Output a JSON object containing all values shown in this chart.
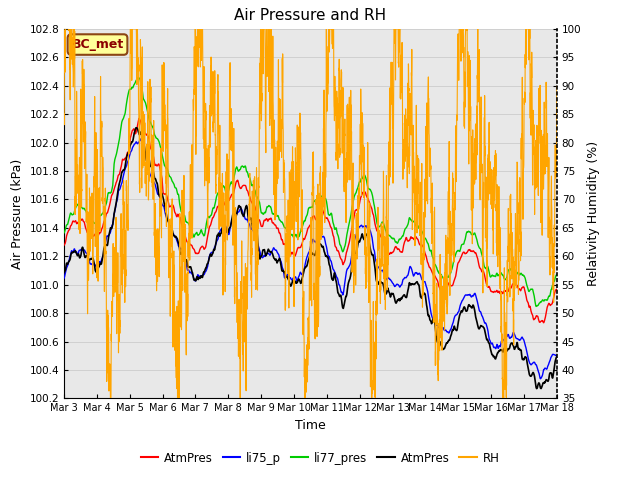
{
  "title": "Air Pressure and RH",
  "xlabel": "Time",
  "ylabel_left": "Air Pressure (kPa)",
  "ylabel_right": "Relativity Humidity (%)",
  "ylim_left": [
    100.2,
    102.8
  ],
  "ylim_right": [
    35,
    100
  ],
  "yticks_left": [
    100.2,
    100.4,
    100.6,
    100.8,
    101.0,
    101.2,
    101.4,
    101.6,
    101.8,
    102.0,
    102.2,
    102.4,
    102.6,
    102.8
  ],
  "yticks_right": [
    35,
    40,
    45,
    50,
    55,
    60,
    65,
    70,
    75,
    80,
    85,
    90,
    95,
    100
  ],
  "xtick_labels": [
    "Mar 3",
    "Mar 4",
    "Mar 5",
    "Mar 6",
    "Mar 7",
    "Mar 8",
    "Mar 9",
    "Mar 10",
    "Mar 11",
    "Mar 12",
    "Mar 13",
    "Mar 14",
    "Mar 15",
    "Mar 16",
    "Mar 17",
    "Mar 18"
  ],
  "annotation_text": "BC_met",
  "annotation_color": "#8B0000",
  "annotation_bg": "#FFFF99",
  "line_colors": {
    "AtmPres": "#FF0000",
    "li75_p": "#0000FF",
    "li77_pres": "#00CC00",
    "AtmPres2": "#000000",
    "RH": "#FFA500"
  },
  "legend_labels": [
    "AtmPres",
    "li75_p",
    "li77_pres",
    "AtmPres",
    "RH"
  ],
  "legend_colors": [
    "#FF0000",
    "#0000FF",
    "#00CC00",
    "#000000",
    "#FFA500"
  ],
  "bg_color": "#FFFFFF",
  "grid_color": "#D0D0D0",
  "plot_bg": "#E8E8E8",
  "n_points": 3600,
  "figsize": [
    6.4,
    4.8
  ],
  "dpi": 100
}
